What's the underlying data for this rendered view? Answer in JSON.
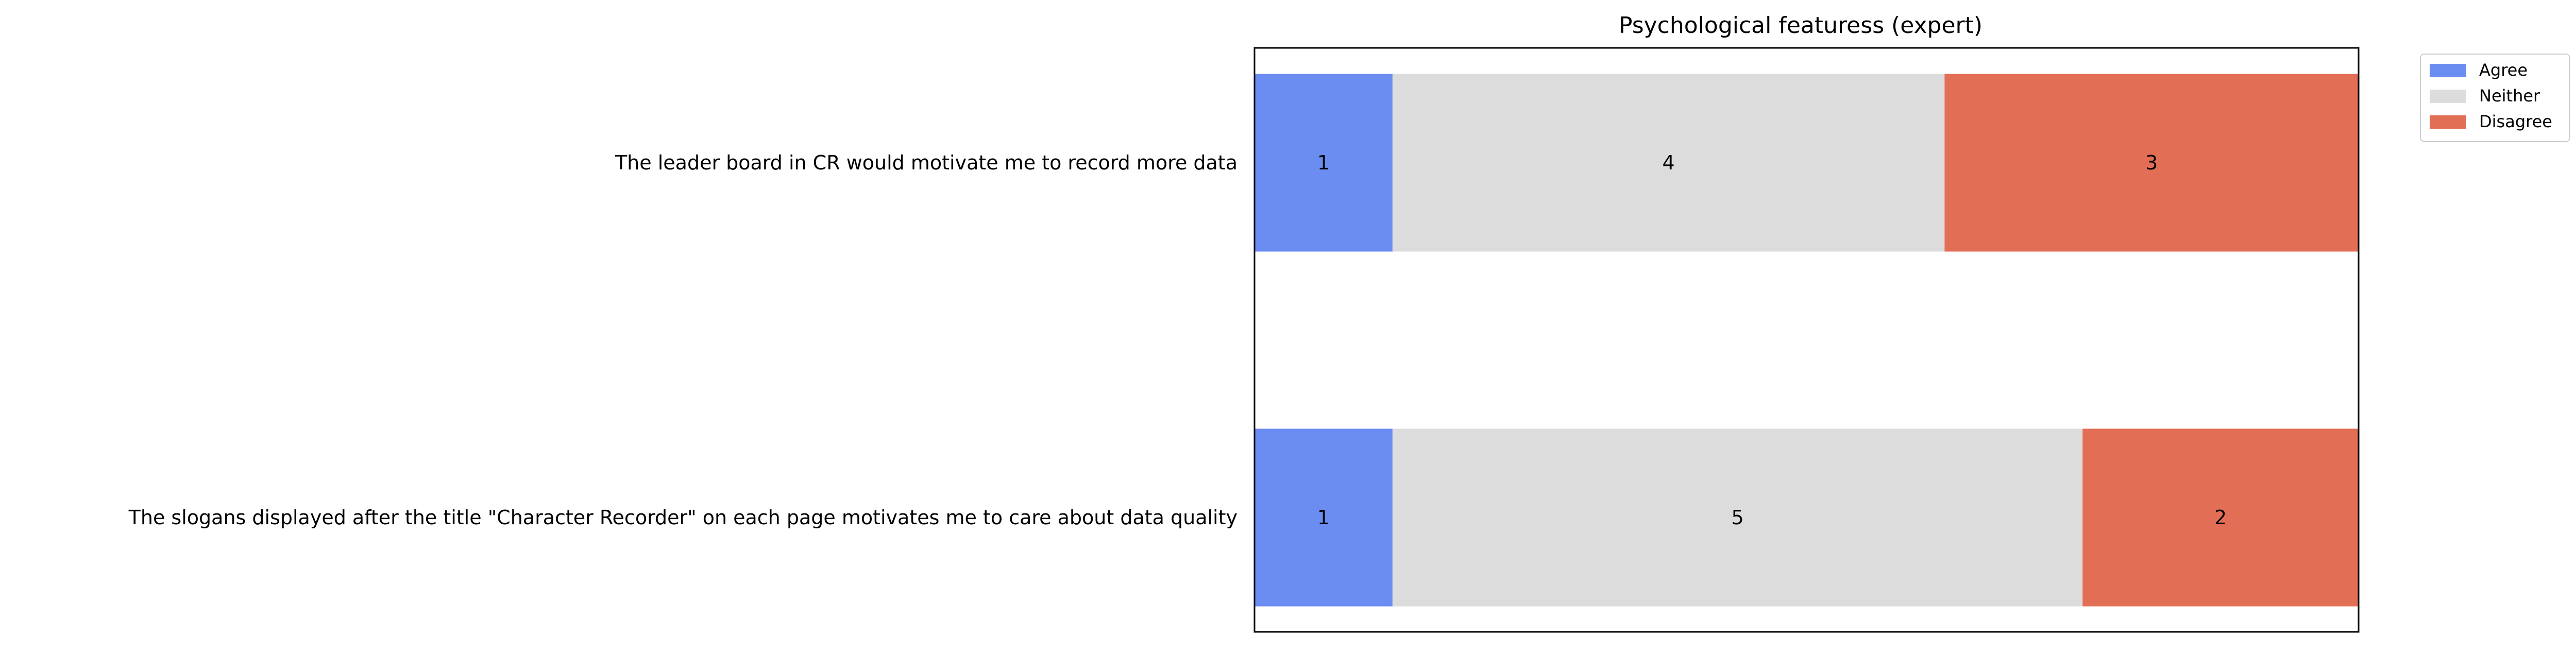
{
  "chart_data": {
    "type": "bar",
    "orientation": "horizontal",
    "stacked": true,
    "title": "Psychological featuress (expert)",
    "xlabel": "",
    "ylabel": "",
    "categories": [
      "The leader board in CR would motivate me to record more data",
      "The slogans displayed after  the title \"Character Recorder\" on each page motivates me to care about data quality"
    ],
    "series": [
      {
        "name": "Agree",
        "values": [
          1,
          1
        ],
        "color": "#6b8cf0"
      },
      {
        "name": "Neither",
        "values": [
          4,
          5
        ],
        "color": "#dcdcdc"
      },
      {
        "name": "Disagree",
        "values": [
          3,
          2
        ],
        "color": "#e36e56"
      }
    ],
    "xlim": [
      0,
      8
    ],
    "axis_ticks_visible": false,
    "grid": false,
    "legend_position": "outside-top-right",
    "bar_labels_visible": true
  }
}
